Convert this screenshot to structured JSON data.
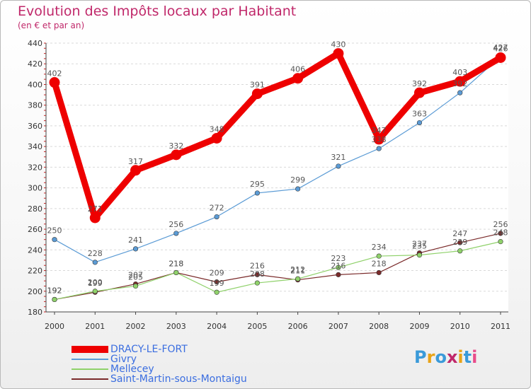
{
  "header": {
    "title": "Evolution des Impôts locaux par Habitant",
    "subtitle": "(en € et par an)"
  },
  "logo": {
    "text": "Proxiti",
    "colors": [
      "#3a9ad9",
      "#e8a317",
      "#3a9ad9",
      "#c0286a",
      "#e8a317",
      "#3a9ad9",
      "#e84c8b"
    ]
  },
  "chart_data": {
    "type": "line",
    "title": "Evolution des Impôts locaux par Habitant",
    "subtitle": "(en € et par an)",
    "xlabel": "",
    "ylabel": "",
    "ylim": [
      180,
      440
    ],
    "yticks": [
      180,
      200,
      220,
      240,
      260,
      280,
      300,
      320,
      340,
      360,
      380,
      400,
      420,
      440
    ],
    "x": [
      "2000",
      "2001",
      "2002",
      "2003",
      "2004",
      "2005",
      "2006",
      "2007",
      "2008",
      "2009",
      "2010",
      "2011"
    ],
    "grid": "horizontal",
    "legend": "bottom-left",
    "series": [
      {
        "name": "DRACY-LE-FORT",
        "color": "#ee0000",
        "style": "thick",
        "values": [
          402,
          271,
          317,
          332,
          348,
          391,
          406,
          430,
          347,
          392,
          403,
          426
        ],
        "labels": [
          "402",
          "271",
          "317",
          "332",
          "348",
          "391",
          "406",
          "430",
          "347",
          "392",
          "403",
          "426"
        ]
      },
      {
        "name": "Givry",
        "color": "#5b9bd5",
        "style": "thin",
        "values": [
          250,
          228,
          241,
          256,
          272,
          295,
          299,
          321,
          338,
          363,
          392,
          427
        ],
        "labels": [
          "250",
          "228",
          "241",
          "256",
          "272",
          "295",
          "299",
          "321",
          "338",
          "363",
          "392",
          "427"
        ]
      },
      {
        "name": "Mellecey",
        "color": "#8fd16a",
        "style": "thin",
        "values": [
          192,
          200,
          205,
          218,
          199,
          208,
          212,
          223,
          234,
          235,
          239,
          248
        ],
        "labels": [
          "192",
          "200",
          "205",
          "218",
          "199",
          "208",
          "212",
          "223",
          "234",
          "235",
          "239",
          "248"
        ]
      },
      {
        "name": "Saint-Martin-sous-Montaigu",
        "color": "#7a2a2a",
        "style": "thin",
        "values": [
          192,
          199,
          207,
          218,
          209,
          216,
          211,
          216,
          218,
          237,
          247,
          256
        ],
        "labels": [
          "192",
          "199",
          "207",
          "218",
          "209",
          "216",
          "211",
          "216",
          "218",
          "237",
          "247",
          "256"
        ]
      }
    ]
  }
}
